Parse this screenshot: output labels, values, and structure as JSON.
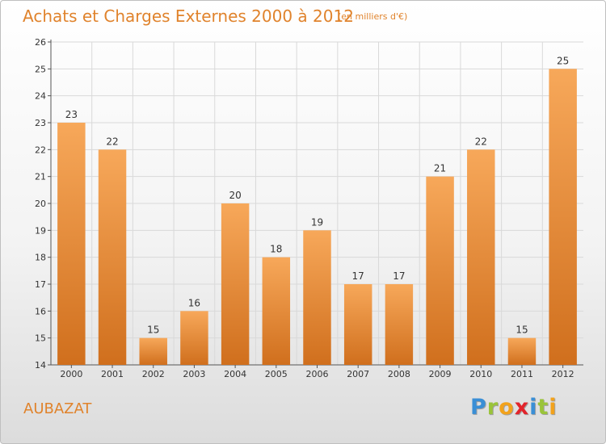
{
  "header": {
    "title": "Achats et Charges Externes 2000 à 2012",
    "unit": "(en milliers d'€)"
  },
  "footer": {
    "town": "AUBAZAT",
    "brand": "Proxiti",
    "brand_letters": [
      {
        "char": "P",
        "color": "#3a8fd6"
      },
      {
        "char": "r",
        "color": "#9ac43a"
      },
      {
        "char": "o",
        "color": "#f2a21c"
      },
      {
        "char": "x",
        "color": "#e2242b"
      },
      {
        "char": "i",
        "color": "#3a8fd6"
      },
      {
        "char": "t",
        "color": "#9ac43a"
      },
      {
        "char": "i",
        "color": "#f2a21c"
      }
    ]
  },
  "colors": {
    "accent": "#e0832c",
    "bar_top": "#f7a85a",
    "bar_bottom": "#d06f1d",
    "grid": "#d9d9d9"
  },
  "chart_data": {
    "type": "bar",
    "title": "Achats et Charges Externes 2000 à 2012",
    "subtitle": "(en milliers d'€)",
    "categories": [
      "2000",
      "2001",
      "2002",
      "2003",
      "2004",
      "2005",
      "2006",
      "2007",
      "2008",
      "2009",
      "2010",
      "2011",
      "2012"
    ],
    "values": [
      23,
      22,
      15,
      16,
      20,
      18,
      19,
      17,
      17,
      21,
      22,
      15,
      25
    ],
    "ylim": [
      14,
      26
    ],
    "yticks": [
      14,
      15,
      16,
      17,
      18,
      19,
      20,
      21,
      22,
      23,
      24,
      25,
      26
    ],
    "grid": true,
    "xlabel": "",
    "ylabel": ""
  }
}
